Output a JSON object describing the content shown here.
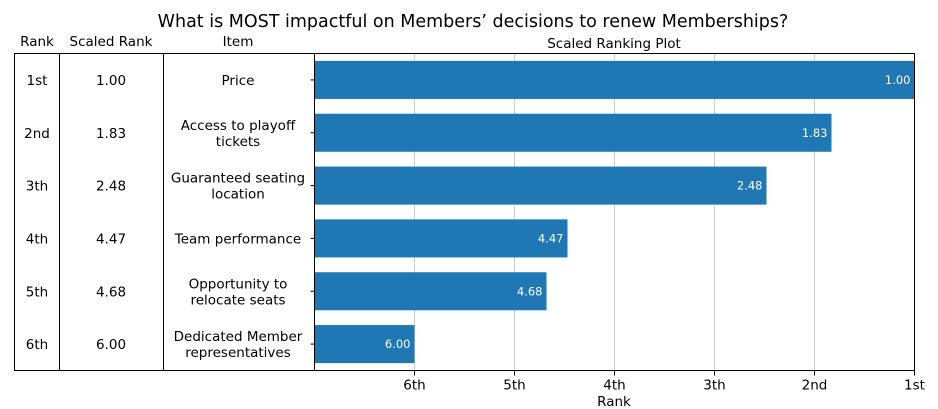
{
  "chart_data": {
    "type": "bar",
    "title": "What is MOST impactful on Members’ decisions to renew Memberships?",
    "table": {
      "headers": [
        "Rank",
        "Scaled Rank",
        "Item"
      ],
      "rows": [
        {
          "rank": "1st",
          "scaled": "1.00",
          "item": [
            "Price"
          ]
        },
        {
          "rank": "2nd",
          "scaled": "1.83",
          "item": [
            "Access to playoff",
            "tickets"
          ]
        },
        {
          "rank": "3th",
          "scaled": "2.48",
          "item": [
            "Guaranteed seating",
            "location"
          ]
        },
        {
          "rank": "4th",
          "scaled": "4.47",
          "item": [
            "Team performance"
          ]
        },
        {
          "rank": "5th",
          "scaled": "4.68",
          "item": [
            "Opportunity to",
            "relocate seats"
          ]
        },
        {
          "rank": "6th",
          "scaled": "6.00",
          "item": [
            "Dedicated Member",
            "representatives"
          ]
        }
      ]
    },
    "plot_title": "Scaled Ranking Plot",
    "xlabel": "Rank",
    "x_ticks": [
      {
        "value": 6,
        "label": "6th"
      },
      {
        "value": 5,
        "label": "5th"
      },
      {
        "value": 4,
        "label": "4th"
      },
      {
        "value": 3,
        "label": "3th"
      },
      {
        "value": 2,
        "label": "2nd"
      },
      {
        "value": 1,
        "label": "1st"
      }
    ],
    "xlim": [
      7,
      1
    ],
    "categories": [
      "Price",
      "Access to playoff tickets",
      "Guaranteed seating location",
      "Team performance",
      "Opportunity to relocate seats",
      "Dedicated Member representatives"
    ],
    "values": [
      1.0,
      1.83,
      2.48,
      4.47,
      4.68,
      6.0
    ],
    "value_labels": [
      "1.00",
      "1.83",
      "2.48",
      "4.47",
      "4.68",
      "6.00"
    ],
    "bar_color": "#1f77b4",
    "grid": true
  }
}
